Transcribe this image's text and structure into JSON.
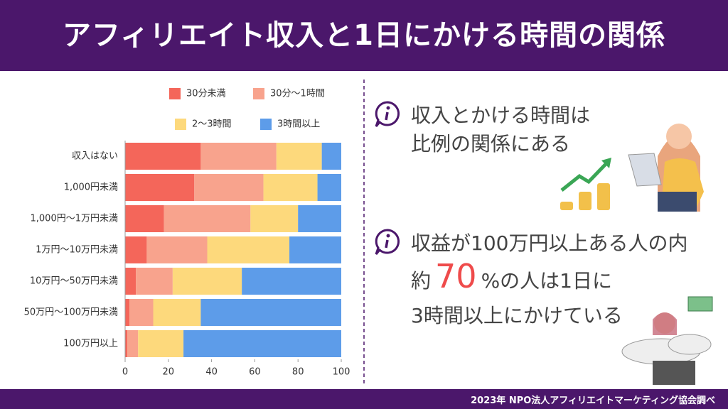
{
  "header": {
    "title": "アフィリエイト収入と1日にかける時間の関係"
  },
  "chart_data": {
    "type": "stacked-bar-horizontal",
    "categories": [
      "収入はない",
      "1,000円未満",
      "1,000円〜1万円未満",
      "1万円〜10万円未満",
      "10万円〜50万円未満",
      "50万円〜100万円未満",
      "100万円以上"
    ],
    "series": [
      {
        "name": "30分未満",
        "color": "#f4665a",
        "values": [
          35,
          32,
          18,
          10,
          5,
          2,
          1
        ]
      },
      {
        "name": "30分〜1時間",
        "color": "#f8a38d",
        "values": [
          35,
          32,
          40,
          28,
          17,
          11,
          5
        ]
      },
      {
        "name": "2〜3時間",
        "color": "#fdd97c",
        "values": [
          21,
          25,
          22,
          38,
          32,
          22,
          21
        ]
      },
      {
        "name": "3時間以上",
        "color": "#5d9ce9",
        "values": [
          9,
          11,
          20,
          24,
          46,
          65,
          73
        ]
      }
    ],
    "xlim": [
      0,
      100
    ],
    "xticks": [
      0,
      20,
      40,
      60,
      80,
      100
    ]
  },
  "points": [
    {
      "lines": [
        "収入とかける時間は",
        "比例の関係にある"
      ]
    },
    {
      "line1": "収益が100万円以上ある人の内",
      "prefix": "約",
      "highlight": 70,
      "suffix": "%の人は1日に",
      "line3": "3時間以上にかけている"
    }
  ],
  "footer": {
    "source": "2023年 NPO法人アフィリエイトマーケティング協会調べ"
  }
}
